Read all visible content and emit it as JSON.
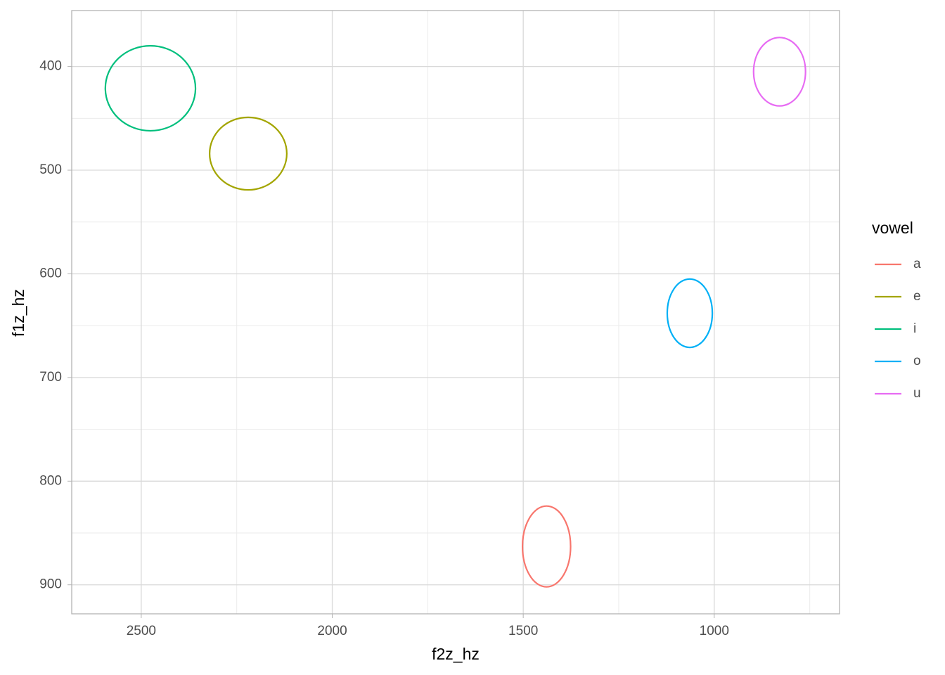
{
  "chart_data": {
    "type": "ellipse",
    "x_label": "f2z_hz",
    "y_label": "f1z_hz",
    "legend_title": "vowel",
    "legend_position": "right",
    "xlim": [
      2682,
      672
    ],
    "ylim": [
      346,
      928
    ],
    "xticks": [
      2500,
      2000,
      1500,
      1000
    ],
    "yticks": [
      400,
      500,
      600,
      700,
      800,
      900
    ],
    "xminor": [
      2250,
      1750,
      1250,
      750
    ],
    "yminor": [
      450,
      550,
      650,
      750,
      850
    ],
    "grid": true,
    "series": [
      {
        "name": "a",
        "color": "#F8766D",
        "cx": 1439,
        "cy": 863,
        "rx": 63,
        "ry": 39
      },
      {
        "name": "e",
        "color": "#A3A500",
        "cx": 2220,
        "cy": 484,
        "rx": 101,
        "ry": 35
      },
      {
        "name": "i",
        "color": "#00BF7D",
        "cx": 2476,
        "cy": 421,
        "rx": 118,
        "ry": 41
      },
      {
        "name": "o",
        "color": "#00B0F6",
        "cx": 1064,
        "cy": 638,
        "rx": 59,
        "ry": 33
      },
      {
        "name": "u",
        "color": "#E76BF3",
        "cx": 829,
        "cy": 405,
        "rx": 68,
        "ry": 33
      }
    ]
  }
}
